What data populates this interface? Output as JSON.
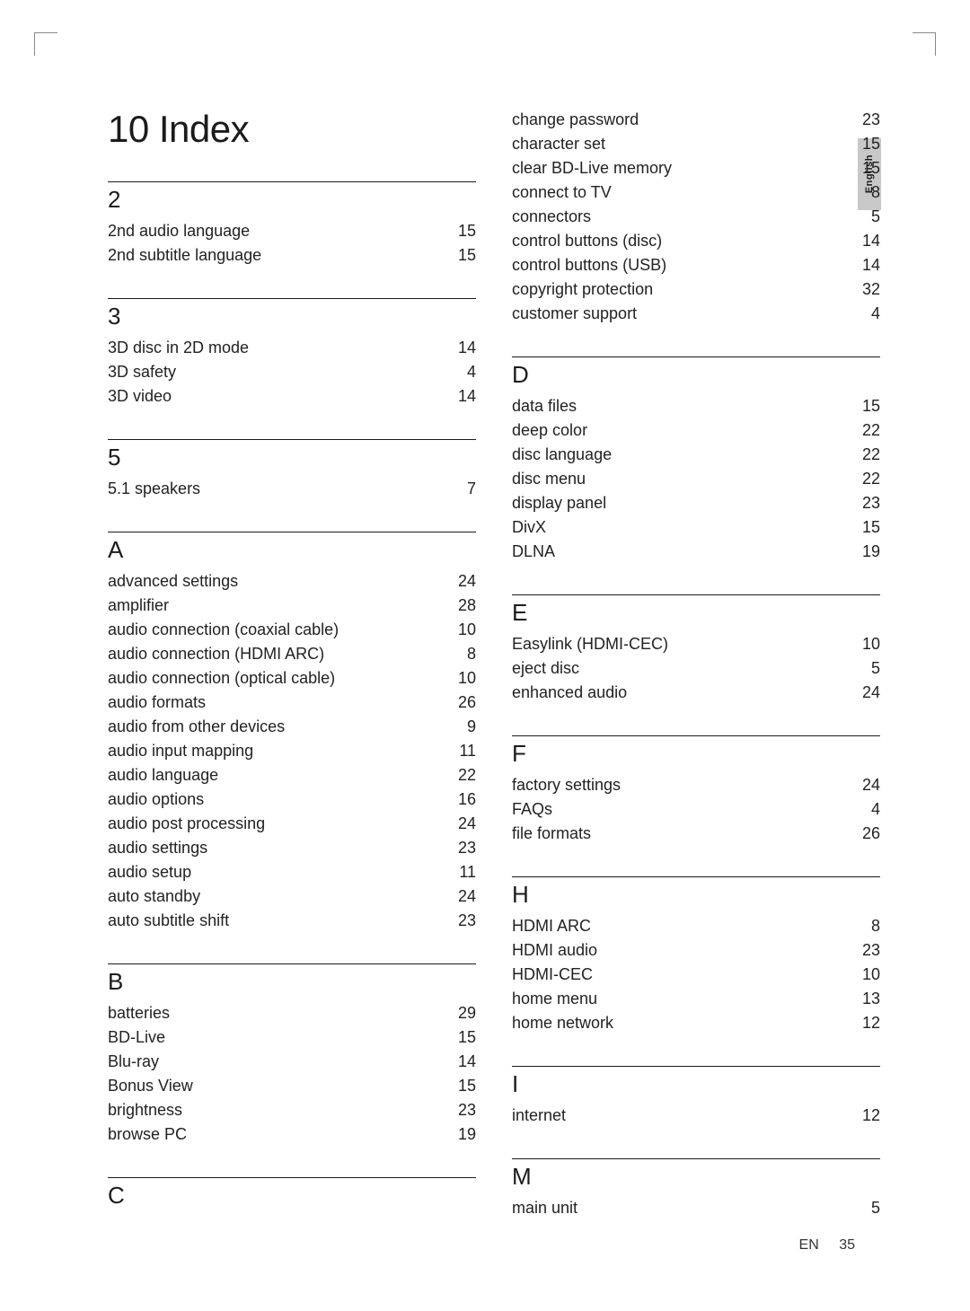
{
  "title": "10 Index",
  "language_tab": "English",
  "footer": {
    "lang": "EN",
    "page": "35"
  },
  "left_column": [
    {
      "heading": "2",
      "entries": [
        {
          "term": "2nd audio language",
          "page": "15"
        },
        {
          "term": "2nd subtitle language",
          "page": "15"
        }
      ]
    },
    {
      "heading": "3",
      "entries": [
        {
          "term": "3D disc in 2D mode",
          "page": "14"
        },
        {
          "term": "3D safety",
          "page": "4"
        },
        {
          "term": "3D video",
          "page": "14"
        }
      ]
    },
    {
      "heading": "5",
      "entries": [
        {
          "term": "5.1 speakers",
          "page": "7"
        }
      ]
    },
    {
      "heading": "A",
      "entries": [
        {
          "term": "advanced settings",
          "page": "24"
        },
        {
          "term": "amplifier",
          "page": "28"
        },
        {
          "term": "audio connection (coaxial cable)",
          "page": "10"
        },
        {
          "term": "audio connection (HDMI ARC)",
          "page": "8"
        },
        {
          "term": "audio connection (optical cable)",
          "page": "10"
        },
        {
          "term": "audio formats",
          "page": "26"
        },
        {
          "term": "audio from other devices",
          "page": "9"
        },
        {
          "term": "audio input mapping",
          "page": "11"
        },
        {
          "term": "audio language",
          "page": "22"
        },
        {
          "term": "audio options",
          "page": "16"
        },
        {
          "term": "audio post processing",
          "page": "24"
        },
        {
          "term": "audio settings",
          "page": "23"
        },
        {
          "term": "audio setup",
          "page": "11"
        },
        {
          "term": "auto standby",
          "page": "24"
        },
        {
          "term": "auto subtitle shift",
          "page": "23"
        }
      ]
    },
    {
      "heading": "B",
      "entries": [
        {
          "term": "batteries",
          "page": "29"
        },
        {
          "term": "BD-Live",
          "page": "15"
        },
        {
          "term": "Blu-ray",
          "page": "14"
        },
        {
          "term": "Bonus View",
          "page": "15"
        },
        {
          "term": "brightness",
          "page": "23"
        },
        {
          "term": "browse PC",
          "page": "19"
        }
      ]
    },
    {
      "heading": "C",
      "entries": []
    }
  ],
  "right_column_top_entries": [
    {
      "term": "change password",
      "page": "23"
    },
    {
      "term": "character set",
      "page": "15"
    },
    {
      "term": "clear BD-Live memory",
      "page": "15"
    },
    {
      "term": "connect to TV",
      "page": "8"
    },
    {
      "term": "connectors",
      "page": "5"
    },
    {
      "term": "control buttons (disc)",
      "page": "14"
    },
    {
      "term": "control buttons (USB)",
      "page": "14"
    },
    {
      "term": "copyright protection",
      "page": "32"
    },
    {
      "term": "customer support",
      "page": "4"
    }
  ],
  "right_column": [
    {
      "heading": "D",
      "entries": [
        {
          "term": "data files",
          "page": "15"
        },
        {
          "term": "deep color",
          "page": "22"
        },
        {
          "term": "disc language",
          "page": "22"
        },
        {
          "term": "disc menu",
          "page": "22"
        },
        {
          "term": "display panel",
          "page": "23"
        },
        {
          "term": "DivX",
          "page": "15"
        },
        {
          "term": "DLNA",
          "page": "19"
        }
      ]
    },
    {
      "heading": "E",
      "entries": [
        {
          "term": "Easylink (HDMI-CEC)",
          "page": "10"
        },
        {
          "term": "eject disc",
          "page": "5"
        },
        {
          "term": "enhanced audio",
          "page": "24"
        }
      ]
    },
    {
      "heading": "F",
      "entries": [
        {
          "term": "factory settings",
          "page": "24"
        },
        {
          "term": "FAQs",
          "page": "4"
        },
        {
          "term": "file formats",
          "page": "26"
        }
      ]
    },
    {
      "heading": "H",
      "entries": [
        {
          "term": "HDMI ARC",
          "page": "8"
        },
        {
          "term": "HDMI audio",
          "page": "23"
        },
        {
          "term": "HDMI-CEC",
          "page": "10"
        },
        {
          "term": "home menu",
          "page": "13"
        },
        {
          "term": "home network",
          "page": "12"
        }
      ]
    },
    {
      "heading": "I",
      "entries": [
        {
          "term": "internet",
          "page": "12"
        }
      ]
    },
    {
      "heading": "M",
      "entries": [
        {
          "term": "main unit",
          "page": "5"
        }
      ]
    }
  ]
}
